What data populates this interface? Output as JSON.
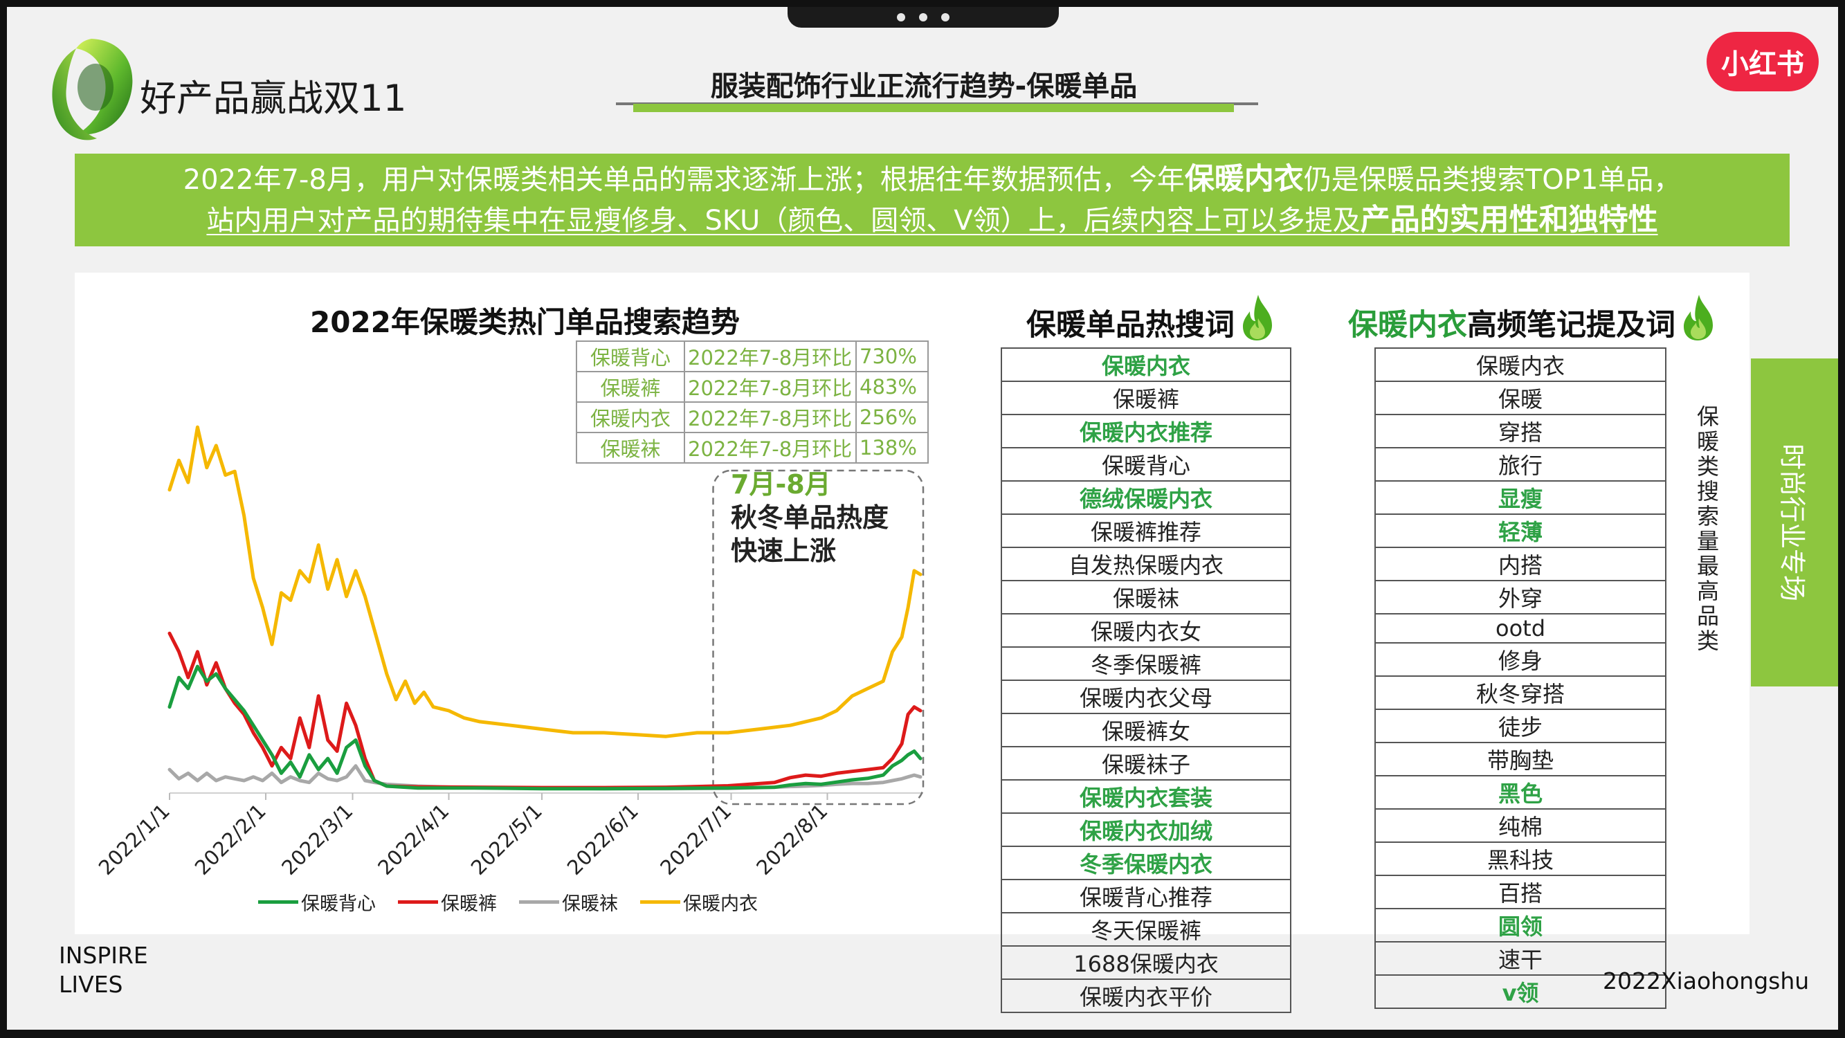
{
  "header": {
    "brand": "好产品赢战双11",
    "title": "服装配饰行业正流行趋势-保暖单品",
    "platform_logo": "小红书"
  },
  "banner": {
    "line1_a": "2022年7-8月，用户对保暖类相关单品的需求逐渐上涨；根据往年数据预估，今年",
    "line1_b": "保暖内衣",
    "line1_c": "仍是保暖品类搜索TOP1单品，",
    "line2_a": "站内用户对产品的期待集中在显瘦修身、SKU（颜色、圆领、V领）上，后续内容上可以多提及",
    "line2_b": "产品的实用性和独特性"
  },
  "chart_data": {
    "type": "line",
    "title": "2022年保暖类热门单品搜索趋势",
    "x_ticks": [
      "2022/1/1",
      "2022/2/1",
      "2022/3/1",
      "2022/4/1",
      "2022/5/1",
      "2022/6/1",
      "2022/7/1",
      "2022/8/1"
    ],
    "x_domain": [
      "2022/1/1",
      "2022/8/31"
    ],
    "ylim": [
      0,
      100
    ],
    "grid": false,
    "legend_placement": "bottom",
    "series": [
      {
        "name": "保暖背心",
        "color": "#1a9e3f",
        "days": [
          0,
          3,
          6,
          9,
          12,
          15,
          18,
          21,
          24,
          27,
          30,
          33,
          36,
          39,
          42,
          45,
          48,
          51,
          54,
          57,
          60,
          63,
          66,
          70,
          80,
          100,
          120,
          140,
          160,
          180,
          195,
          200,
          205,
          210,
          215,
          220,
          225,
          230,
          233,
          236,
          238,
          240,
          242
        ],
        "values": [
          23,
          31,
          28,
          34,
          30,
          32,
          28,
          25,
          22,
          18,
          14,
          10,
          5,
          8,
          4,
          10,
          6,
          9,
          5,
          12,
          14,
          7,
          3,
          1.5,
          1,
          1,
          0.8,
          0.8,
          0.9,
          1,
          1.2,
          1.8,
          2.2,
          2,
          2.6,
          3.2,
          3.6,
          4.5,
          7,
          8.5,
          10,
          11,
          9
        ]
      },
      {
        "name": "保暖裤",
        "color": "#dd1a1a",
        "days": [
          0,
          3,
          6,
          9,
          12,
          15,
          18,
          21,
          24,
          27,
          30,
          33,
          36,
          39,
          42,
          45,
          48,
          51,
          54,
          57,
          60,
          63,
          66,
          70,
          80,
          100,
          120,
          140,
          160,
          180,
          195,
          200,
          205,
          210,
          215,
          220,
          225,
          230,
          233,
          236,
          238,
          240,
          242
        ],
        "values": [
          43,
          38,
          31,
          38,
          29,
          35,
          28,
          24,
          21,
          16,
          12,
          7,
          12,
          9,
          20,
          12,
          26,
          14,
          11,
          24,
          18,
          9,
          3,
          1.5,
          1.3,
          1.2,
          1.1,
          1.1,
          1.2,
          1.6,
          2.5,
          3.8,
          4.5,
          4.2,
          5,
          5.5,
          6,
          6.5,
          9,
          13,
          21,
          23,
          22
        ]
      },
      {
        "name": "保暖袜",
        "color": "#a8a8a8",
        "days": [
          0,
          3,
          6,
          9,
          12,
          15,
          18,
          21,
          24,
          27,
          30,
          33,
          36,
          39,
          42,
          45,
          48,
          51,
          54,
          57,
          60,
          63,
          66,
          70,
          80,
          100,
          120,
          140,
          160,
          180,
          195,
          200,
          205,
          210,
          215,
          220,
          225,
          230,
          233,
          236,
          238,
          240,
          242
        ],
        "values": [
          6,
          3.5,
          5,
          3,
          5,
          3,
          4,
          3.5,
          3,
          4,
          3,
          5,
          2.5,
          4,
          3,
          2.5,
          5,
          3.5,
          3,
          4,
          7,
          3,
          2.5,
          2,
          1.5,
          1,
          1,
          0.8,
          0.8,
          0.9,
          1.2,
          1.4,
          1.5,
          1.7,
          2,
          2.2,
          2.2,
          2.5,
          3,
          3.5,
          4,
          4.5,
          4
        ]
      },
      {
        "name": "保暖内衣",
        "color": "#f5b800",
        "days": [
          0,
          3,
          6,
          9,
          12,
          15,
          18,
          21,
          24,
          27,
          30,
          33,
          36,
          39,
          42,
          45,
          48,
          51,
          54,
          57,
          60,
          63,
          66,
          70,
          73,
          76,
          79,
          82,
          85,
          90,
          95,
          100,
          110,
          120,
          130,
          140,
          150,
          160,
          170,
          180,
          190,
          200,
          210,
          215,
          220,
          225,
          230,
          233,
          236,
          238,
          240,
          242
        ],
        "values": [
          82,
          90,
          84,
          99,
          88,
          94,
          86,
          87,
          75,
          58,
          50,
          40,
          54,
          52,
          60,
          57,
          67,
          55,
          63,
          53,
          60,
          53,
          44,
          32,
          25,
          30,
          24,
          27,
          23,
          22,
          20,
          19,
          18,
          17,
          16,
          16,
          15.5,
          15,
          16,
          16,
          17,
          18,
          20,
          22,
          26,
          28,
          30,
          38,
          42,
          50,
          60,
          59
        ]
      }
    ]
  },
  "mom_table": [
    {
      "name": "保暖背心",
      "period": "2022年7-8月环比",
      "value": "730%"
    },
    {
      "name": "保暖裤",
      "period": "2022年7-8月环比",
      "value": "483%"
    },
    {
      "name": "保暖内衣",
      "period": "2022年7-8月环比",
      "value": "256%"
    },
    {
      "name": "保暖袜",
      "period": "2022年7-8月环比",
      "value": "138%"
    }
  ],
  "annotation": {
    "date": "7月-8月",
    "text_1": "秋冬单品热度",
    "text_2": "快速上涨"
  },
  "hot_terms": {
    "heading": "保暖单品热搜词",
    "items": [
      {
        "text": "保暖内衣",
        "hl": true
      },
      {
        "text": "保暖裤",
        "hl": false
      },
      {
        "text": "保暖内衣推荐",
        "hl": true
      },
      {
        "text": "保暖背心",
        "hl": false
      },
      {
        "text": "德绒保暖内衣",
        "hl": true
      },
      {
        "text": "保暖裤推荐",
        "hl": false
      },
      {
        "text": "自发热保暖内衣",
        "hl": false
      },
      {
        "text": "保暖袜",
        "hl": false
      },
      {
        "text": "保暖内衣女",
        "hl": false
      },
      {
        "text": "冬季保暖裤",
        "hl": false
      },
      {
        "text": "保暖内衣父母",
        "hl": false
      },
      {
        "text": "保暖裤女",
        "hl": false
      },
      {
        "text": "保暖袜子",
        "hl": false
      },
      {
        "text": "保暖内衣套装",
        "hl": true
      },
      {
        "text": "保暖内衣加绒",
        "hl": true
      },
      {
        "text": "冬季保暖内衣",
        "hl": true
      },
      {
        "text": "保暖背心推荐",
        "hl": false
      },
      {
        "text": "冬天保暖裤",
        "hl": false
      },
      {
        "text": "1688保暖内衣",
        "hl": false
      },
      {
        "text": "保暖内衣平价",
        "hl": false
      }
    ]
  },
  "note_terms": {
    "heading_accent": "保暖内衣",
    "heading_rest": "高频笔记提及词",
    "items": [
      {
        "text": "保暖内衣",
        "hl": false
      },
      {
        "text": "保暖",
        "hl": false
      },
      {
        "text": "穿搭",
        "hl": false
      },
      {
        "text": "旅行",
        "hl": false
      },
      {
        "text": "显瘦",
        "hl": true
      },
      {
        "text": "轻薄",
        "hl": true
      },
      {
        "text": "内搭",
        "hl": false
      },
      {
        "text": "外穿",
        "hl": false
      },
      {
        "text": "ootd",
        "hl": false
      },
      {
        "text": "修身",
        "hl": false
      },
      {
        "text": "秋冬穿搭",
        "hl": false
      },
      {
        "text": "徒步",
        "hl": false
      },
      {
        "text": "带胸垫",
        "hl": false
      },
      {
        "text": "黑色",
        "hl": true
      },
      {
        "text": "纯棉",
        "hl": false
      },
      {
        "text": "黑科技",
        "hl": false
      },
      {
        "text": "百搭",
        "hl": false
      },
      {
        "text": "圆领",
        "hl": true
      },
      {
        "text": "速干",
        "hl": false
      },
      {
        "text": "v领",
        "hl": true
      }
    ]
  },
  "side_note": "保暖类搜索量最高品类",
  "side_tab": "时尚行业专场",
  "footer": {
    "inspire_1": "INSPIRE",
    "inspire_2": "LIVES",
    "copyright": "2022Xiaohongshu"
  },
  "icons": {
    "flame": "flame-icon",
    "logo": "green-ribbon-logo"
  },
  "colors": {
    "accent_green": "#8dc63f",
    "highlight_green": "#2fa246",
    "brand_red": "#ee2643"
  }
}
